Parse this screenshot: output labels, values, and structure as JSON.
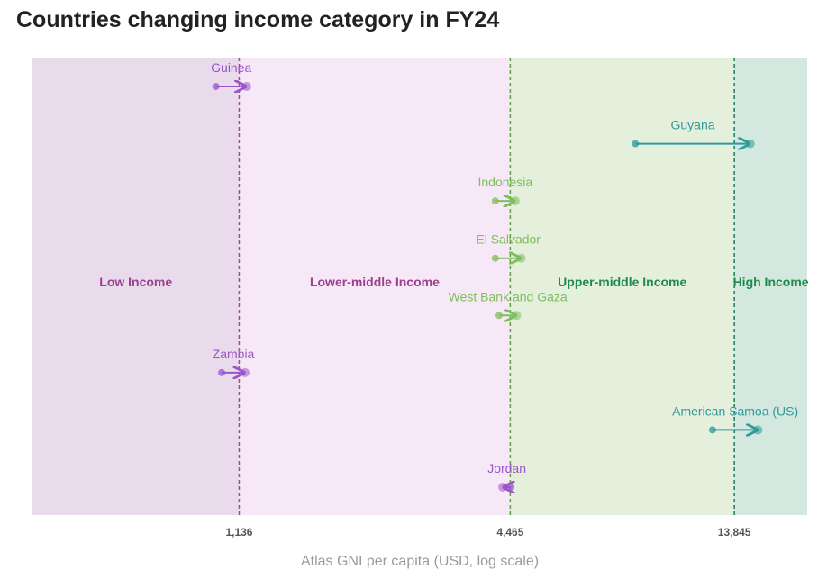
{
  "title": "Countries changing income category in FY24",
  "chart_data": {
    "type": "arrow-dot",
    "title": "Countries changing income category in FY24",
    "xlabel": "Atlas GNI per capita (USD, log scale)",
    "xscale": "log",
    "xlim": [
      400,
      20000
    ],
    "thresholds": [
      {
        "value": 1136,
        "label": "1,136",
        "color": "#9b4d8f"
      },
      {
        "value": 4465,
        "label": "4,465",
        "color": "#5fa042"
      },
      {
        "value": 13845,
        "label": "13,845",
        "color": "#1f7a5c"
      }
    ],
    "bands": [
      {
        "name": "Low Income",
        "from": 400,
        "to": 1136,
        "fill": "#eadbec",
        "label_color": "#9b3f8e"
      },
      {
        "name": "Lower-middle Income",
        "from": 1136,
        "to": 4465,
        "fill": "#f6e8f6",
        "label_color": "#9b3f8e"
      },
      {
        "name": "Upper-middle Income",
        "from": 4465,
        "to": 13845,
        "fill": "#e4efdc",
        "label_color": "#1e8a4c"
      },
      {
        "name": "High Income",
        "from": 13845,
        "to": 20000,
        "fill": "#d3e8de",
        "label_color": "#1e8a4c"
      }
    ],
    "countries": [
      {
        "name": "Guinea",
        "from": 1010,
        "to": 1180,
        "color": "#9a55c8"
      },
      {
        "name": "Guyana",
        "from": 8400,
        "to": 15000,
        "color": "#2e9a9a"
      },
      {
        "name": "Indonesia",
        "from": 4140,
        "to": 4580,
        "color": "#7fbe5c"
      },
      {
        "name": "El Salvador",
        "from": 4140,
        "to": 4720,
        "color": "#7fbe5c"
      },
      {
        "name": "West Bank and Gaza",
        "from": 4220,
        "to": 4610,
        "color": "#7fbe5c"
      },
      {
        "name": "Zambia",
        "from": 1040,
        "to": 1170,
        "color": "#9a55c8"
      },
      {
        "name": "American Samoa (US)",
        "from": 12400,
        "to": 15600,
        "color": "#2e9a9a"
      },
      {
        "name": "Jordan",
        "from": 4480,
        "to": 4300,
        "color": "#9a55c8"
      }
    ]
  }
}
